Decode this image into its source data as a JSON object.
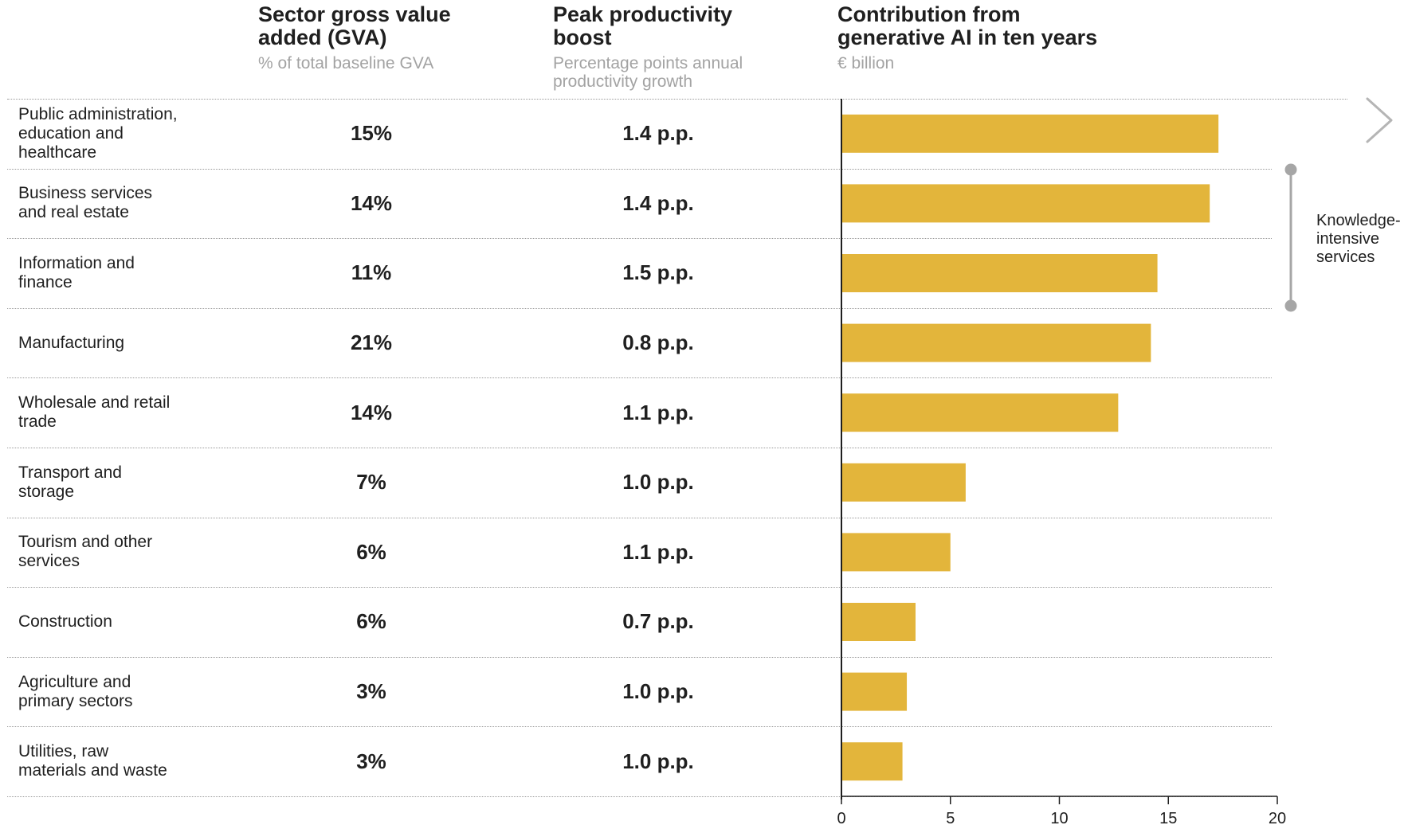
{
  "headers": {
    "gva": {
      "title": "Sector gross value added (GVA)",
      "title_lines": [
        "Sector gross value",
        "added (GVA)"
      ],
      "subtitle": "% of total baseline GVA"
    },
    "boost": {
      "title": "Peak productivity boost",
      "title_lines": [
        "Peak productivity",
        "boost"
      ],
      "subtitle_lines": [
        "Percentage points annual",
        "productivity growth"
      ]
    },
    "contribution": {
      "title": "Contribution from generative AI in ten years",
      "title_lines": [
        "Contribution from",
        "generative AI in ten years"
      ],
      "subtitle": "€ billion"
    }
  },
  "rows": [
    {
      "sector_lines": [
        "Public administration,",
        "education and",
        "healthcare"
      ],
      "gva": "15%",
      "boost": "1.4 p.p."
    },
    {
      "sector_lines": [
        "Business services",
        "and real estate"
      ],
      "gva": "14%",
      "boost": "1.4 p.p."
    },
    {
      "sector_lines": [
        "Information and",
        "finance"
      ],
      "gva": "11%",
      "boost": "1.5 p.p."
    },
    {
      "sector_lines": [
        "Manufacturing"
      ],
      "gva": "21%",
      "boost": "0.8 p.p."
    },
    {
      "sector_lines": [
        "Wholesale and retail",
        "trade"
      ],
      "gva": "14%",
      "boost": "1.1 p.p."
    },
    {
      "sector_lines": [
        "Transport and",
        "storage"
      ],
      "gva": "7%",
      "boost": "1.0 p.p."
    },
    {
      "sector_lines": [
        "Tourism and other",
        "services"
      ],
      "gva": "6%",
      "boost": "1.1 p.p."
    },
    {
      "sector_lines": [
        "Construction"
      ],
      "gva": "6%",
      "boost": "0.7 p.p."
    },
    {
      "sector_lines": [
        "Agriculture and",
        "primary sectors"
      ],
      "gva": "3%",
      "boost": "1.0 p.p."
    },
    {
      "sector_lines": [
        "Utilities, raw",
        "materials and waste"
      ],
      "gva": "3%",
      "boost": "1.0 p.p."
    }
  ],
  "bracket": {
    "label_lines": [
      "Knowledge-",
      "intensive",
      "services"
    ],
    "from_row": 1,
    "to_row": 2
  },
  "nav": {
    "icon": "chevron-right-icon"
  },
  "colors": {
    "bar": "#e3b53b",
    "axis": "#1f1f1f",
    "bracket": "#a6a6a6",
    "subtitle": "#a3a3a3",
    "chevron": "#b5b5b5"
  },
  "chart_data": {
    "type": "bar",
    "orientation": "horizontal",
    "categories": [
      "Public administration, education and healthcare",
      "Business services and real estate",
      "Information and finance",
      "Manufacturing",
      "Wholesale and retail trade",
      "Transport and storage",
      "Tourism and other services",
      "Construction",
      "Agriculture and primary sectors",
      "Utilities, raw materials and waste"
    ],
    "values": [
      17.3,
      16.9,
      14.5,
      14.2,
      12.7,
      5.7,
      5.0,
      3.4,
      3.0,
      2.8
    ],
    "title": "Contribution from generative AI in ten years",
    "xlabel": "€ billion",
    "xlim": [
      0,
      20
    ],
    "xticks": [
      0,
      5,
      10,
      15,
      20
    ],
    "grid": false,
    "legend": "none"
  }
}
